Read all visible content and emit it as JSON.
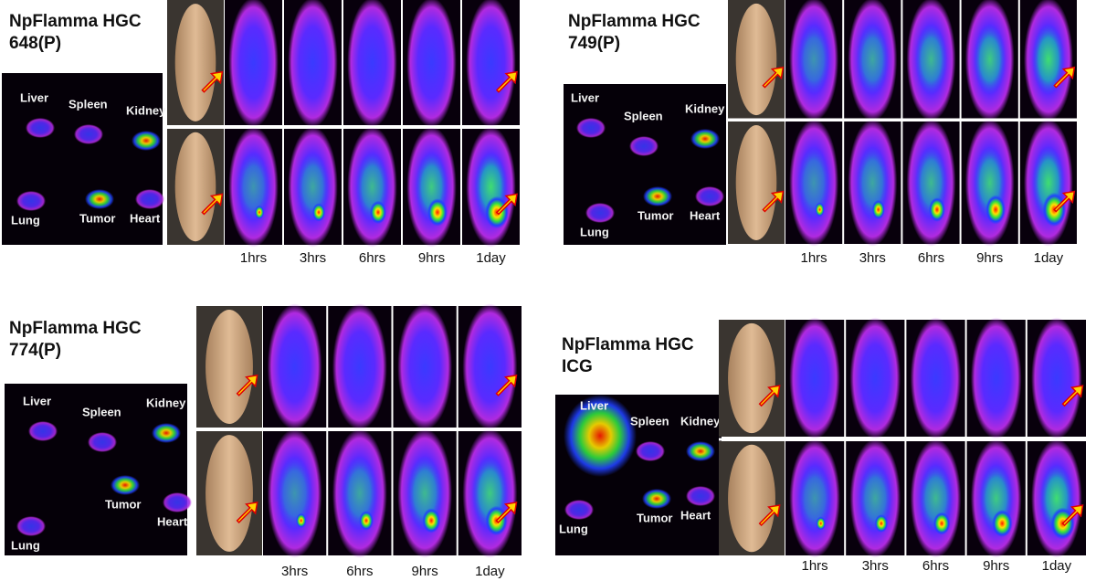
{
  "panels": [
    {
      "title": [
        "NpFlamma HGC",
        "648(P)"
      ],
      "organs": [
        "Liver",
        "Spleen",
        "Kidney",
        "Lung",
        "Tumor",
        "Heart"
      ],
      "times": [
        "1hrs",
        "3hrs",
        "6hrs",
        "9hrs",
        "1day"
      ]
    },
    {
      "title": [
        "NpFlamma HGC",
        "749(P)"
      ],
      "organs": [
        "Liver",
        "Spleen",
        "Kidney",
        "Lung",
        "Tumor",
        "Heart"
      ],
      "times": [
        "1hrs",
        "3hrs",
        "6hrs",
        "9hrs",
        "1day"
      ]
    },
    {
      "title": [
        "NpFlamma HGC",
        "774(P)"
      ],
      "organs": [
        "Liver",
        "Spleen",
        "Kidney",
        "Lung",
        "Tumor",
        "Heart"
      ],
      "times": [
        "3hrs",
        "6hrs",
        "9hrs",
        "1day"
      ]
    },
    {
      "title": [
        "NpFlamma HGC",
        "ICG"
      ],
      "organs": [
        "Liver",
        "Spleen",
        "Kidney",
        "Lung",
        "Tumor",
        "Heart"
      ],
      "times": [
        "1hrs",
        "3hrs",
        "6hrs",
        "9hrs",
        "1day"
      ]
    }
  ]
}
